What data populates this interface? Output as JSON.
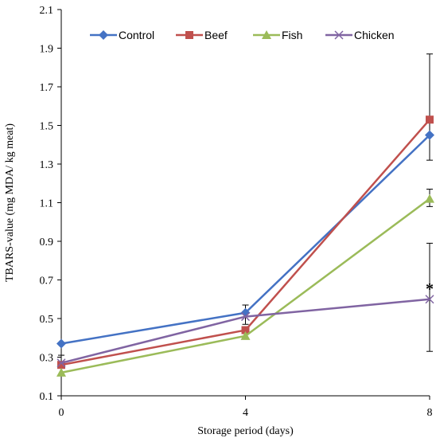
{
  "chart_data": {
    "type": "line",
    "title": "",
    "xlabel": "Storage period  (days)",
    "ylabel": "TBARS-value (mg MDA/ kg meat)",
    "x": [
      0,
      4,
      8
    ],
    "x_ticks": [
      "0",
      "4",
      "8"
    ],
    "xlim": [
      0,
      8
    ],
    "ylim": [
      0.1,
      2.1
    ],
    "y_ticks": [
      "0.1",
      "0.3",
      "0.5",
      "0.7",
      "0.9",
      "1.1",
      "1.3",
      "1.5",
      "1.7",
      "1.9",
      "2.1"
    ],
    "grid": false,
    "legend_position": "top",
    "series": [
      {
        "name": "Control",
        "color": "#4472C4",
        "marker": "diamond",
        "values": [
          0.37,
          0.53,
          1.45
        ]
      },
      {
        "name": "Beef",
        "color": "#C0504D",
        "marker": "square",
        "values": [
          0.26,
          0.44,
          1.53
        ]
      },
      {
        "name": "Fish",
        "color": "#9BBB59",
        "marker": "triangle",
        "values": [
          0.22,
          0.41,
          1.12
        ]
      },
      {
        "name": "Chicken",
        "color": "#8064A2",
        "marker": "x",
        "values": [
          0.27,
          0.51,
          0.6
        ]
      }
    ],
    "error_bars": [
      {
        "x": 0,
        "low": 0.26,
        "high": 0.31
      },
      {
        "x": 4,
        "low": 0.47,
        "high": 0.57
      },
      {
        "x": 8,
        "low": 1.32,
        "high": 1.87
      },
      {
        "x": 8,
        "low": 1.08,
        "high": 1.17
      },
      {
        "x": 8,
        "low": 0.33,
        "high": 0.89
      }
    ],
    "annotations": [
      {
        "text": "*",
        "x": 8,
        "y": 0.66
      }
    ]
  }
}
